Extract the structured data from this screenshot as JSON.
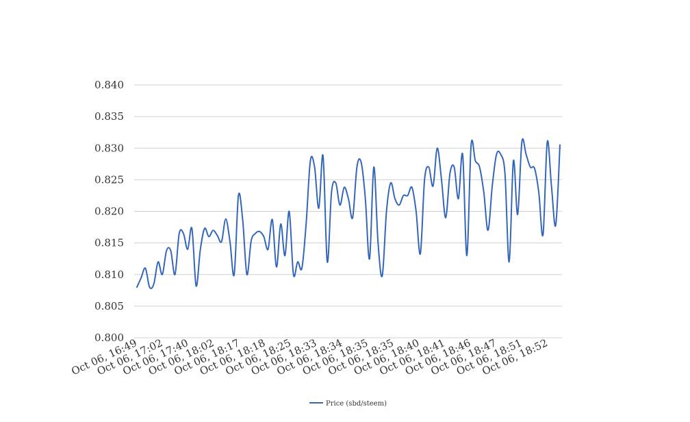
{
  "chart_data": {
    "type": "line",
    "title": "",
    "xlabel": "",
    "ylabel": "",
    "ylim": [
      0.8,
      0.84
    ],
    "yticks": [
      "0.800",
      "0.805",
      "0.810",
      "0.815",
      "0.820",
      "0.825",
      "0.830",
      "0.835",
      "0.840"
    ],
    "grid": true,
    "legend_position": "bottom-center",
    "x_tick_labels": [
      "Oct 06, 16:49",
      "Oct 06, 17:02",
      "Oct 06, 17:40",
      "Oct 06, 18:02",
      "Oct 06, 18:17",
      "Oct 06, 18:18",
      "Oct 06, 18:25",
      "Oct 06, 18:33",
      "Oct 06, 18:34",
      "Oct 06, 18:35",
      "Oct 06, 18:35",
      "Oct 06, 18:40",
      "Oct 06, 18:41",
      "Oct 06, 18:46",
      "Oct 06, 18:47",
      "Oct 06, 18:51",
      "Oct 06, 18:52"
    ],
    "series": [
      {
        "name": "Price (sbd/steem)",
        "color": "#3366bb",
        "values": [
          0.808,
          0.8095,
          0.811,
          0.808,
          0.8085,
          0.812,
          0.81,
          0.8138,
          0.8138,
          0.81,
          0.8165,
          0.8165,
          0.814,
          0.8173,
          0.8082,
          0.814,
          0.8173,
          0.816,
          0.817,
          0.8162,
          0.8152,
          0.8188,
          0.8152,
          0.81,
          0.8225,
          0.8187,
          0.81,
          0.8153,
          0.8165,
          0.8168,
          0.816,
          0.814,
          0.8187,
          0.8112,
          0.818,
          0.813,
          0.82,
          0.81,
          0.812,
          0.811,
          0.818,
          0.828,
          0.827,
          0.8205,
          0.8288,
          0.812,
          0.823,
          0.8245,
          0.821,
          0.8238,
          0.822,
          0.819,
          0.827,
          0.8278,
          0.822,
          0.8125,
          0.827,
          0.815,
          0.8098,
          0.82,
          0.8245,
          0.822,
          0.821,
          0.8225,
          0.8225,
          0.8238,
          0.82,
          0.8133,
          0.825,
          0.827,
          0.824,
          0.83,
          0.825,
          0.819,
          0.826,
          0.827,
          0.822,
          0.829,
          0.813,
          0.8305,
          0.828,
          0.827,
          0.823,
          0.817,
          0.824,
          0.829,
          0.829,
          0.826,
          0.812,
          0.828,
          0.8195,
          0.831,
          0.829,
          0.827,
          0.8268,
          0.823,
          0.8163,
          0.831,
          0.824,
          0.8178,
          0.8305
        ]
      }
    ]
  },
  "legend": {
    "label": "Price (sbd/steem)"
  }
}
